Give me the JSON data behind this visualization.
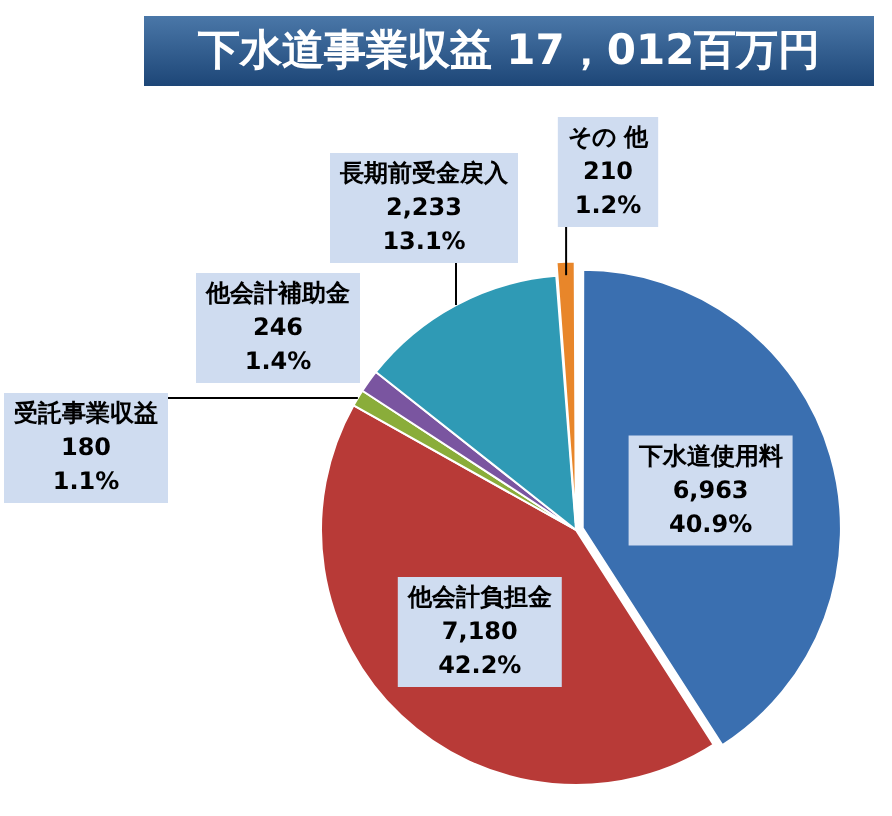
{
  "chart_data": {
    "type": "pie",
    "title": "下水道事業収益 17，012百万円",
    "categories": [
      "下水道使用料",
      "他会計負担金",
      "受託事業収益",
      "他会計補助金",
      "長期前受金戻入",
      "その 他"
    ],
    "values": [
      6963,
      7180,
      180,
      246,
      2233,
      210
    ],
    "colors": [
      "#3a6fb0",
      "#b83a37",
      "#8aad3a",
      "#7a55a0",
      "#2f9ab5",
      "#e8862a"
    ],
    "value_labels": [
      "6,963\n40.9%",
      "7,180\n42.2%",
      "180\n1.1%",
      "246\n1.4%",
      "2,233\n13.1%",
      "210\n1.2%"
    ],
    "legend": false
  }
}
